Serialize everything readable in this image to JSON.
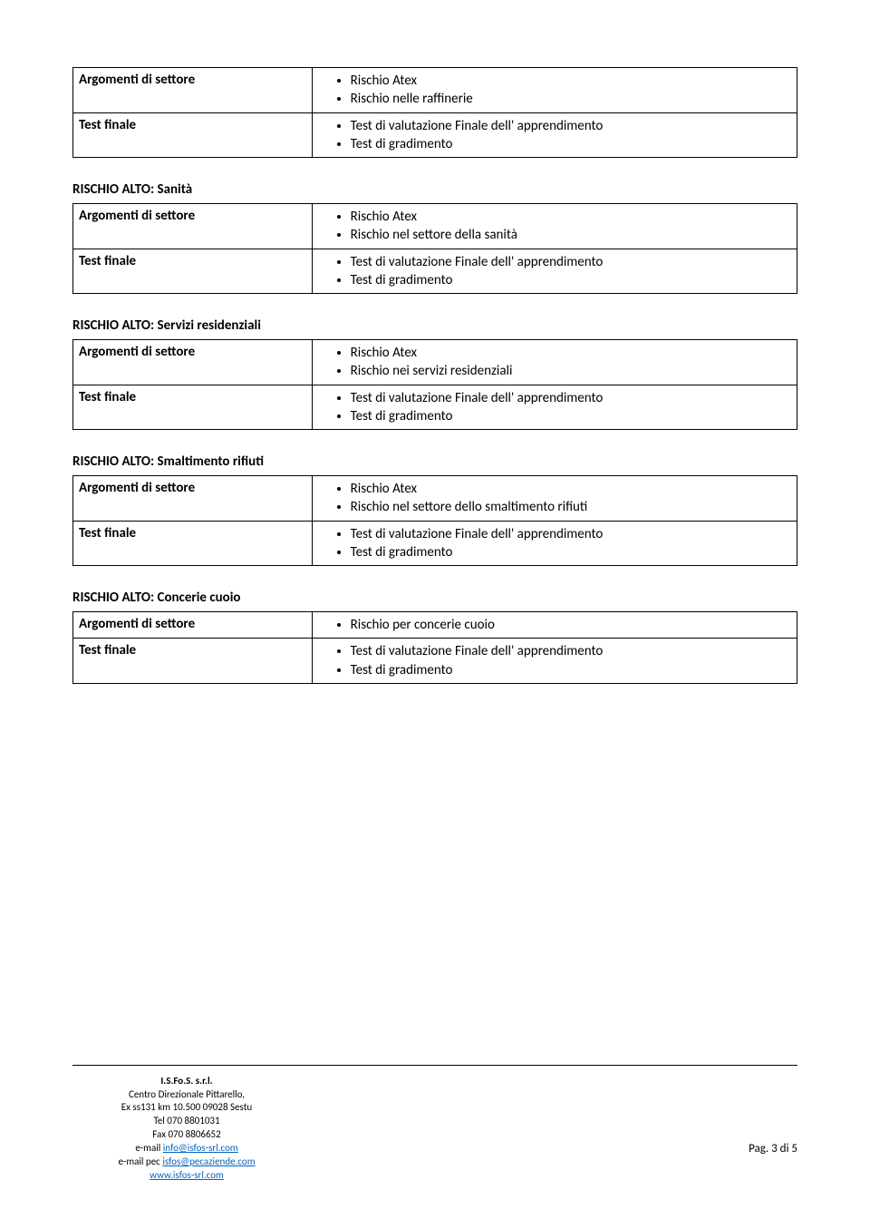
{
  "colors": {
    "text": "#000000",
    "background": "#ffffff",
    "border": "#000000",
    "link": "#0563c1"
  },
  "typography": {
    "base_font": "Calibri",
    "body_size_pt": 11,
    "footer_size_pt": 8
  },
  "sections": [
    {
      "title": null,
      "rows": [
        {
          "left": "Argomenti di settore",
          "items": [
            "Rischio Atex",
            "Rischio nelle raffinerie"
          ]
        },
        {
          "left": "Test finale",
          "items": [
            "Test di valutazione Finale dell' apprendimento",
            "Test di gradimento"
          ]
        }
      ]
    },
    {
      "title": "RISCHIO ALTO: Sanità",
      "rows": [
        {
          "left": "Argomenti di settore",
          "items": [
            "Rischio Atex",
            "Rischio nel settore della sanità"
          ]
        },
        {
          "left": "Test finale",
          "items": [
            "Test di valutazione Finale dell' apprendimento",
            "Test di gradimento"
          ]
        }
      ]
    },
    {
      "title": "RISCHIO ALTO: Servizi residenziali",
      "rows": [
        {
          "left": "Argomenti di settore",
          "items": [
            "Rischio Atex",
            "Rischio nei servizi residenziali"
          ]
        },
        {
          "left": "Test finale",
          "items": [
            "Test di valutazione Finale dell' apprendimento",
            "Test di gradimento"
          ]
        }
      ]
    },
    {
      "title": "RISCHIO ALTO: Smaltimento rifiuti",
      "rows": [
        {
          "left": "Argomenti di settore",
          "items": [
            "Rischio Atex",
            "Rischio nel settore dello smaltimento rifiuti"
          ]
        },
        {
          "left": "Test finale",
          "items": [
            "Test di valutazione Finale dell' apprendimento",
            "Test di gradimento"
          ]
        }
      ]
    },
    {
      "title": "RISCHIO ALTO: Concerie cuoio",
      "rows": [
        {
          "left": "Argomenti di settore",
          "items": [
            "Rischio per concerie cuoio"
          ]
        },
        {
          "left": "Test finale",
          "items": [
            "Test di valutazione Finale dell' apprendimento",
            "Test di gradimento"
          ]
        }
      ]
    }
  ],
  "footer": {
    "company": "I.S.Fo.S. s.r.l.",
    "address1": "Centro Direzionale Pittarello,",
    "address2": "Ex ss131 km 10.500 09028 Sestu",
    "tel": "Tel 070 8801031",
    "fax": "Fax 070 8806652",
    "email_label": "e-mail ",
    "email_link": "info@isfos-srl.com",
    "pec_label": "e-mail pec ",
    "pec_link": "isfos@pecaziende.com",
    "web": "www.isfos-srl.com",
    "page": "Pag. 3 di 5"
  }
}
